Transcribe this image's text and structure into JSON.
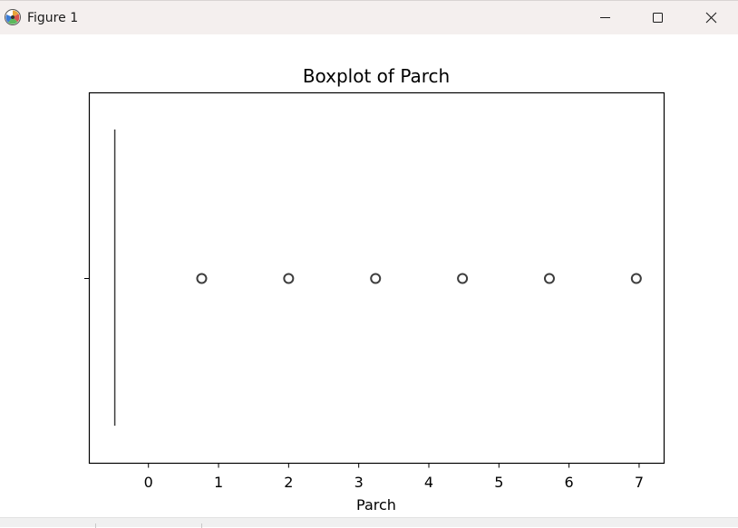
{
  "window": {
    "title": "Figure 1",
    "icons": {
      "app": "matplotlib-figure-icon",
      "minimize": "minimize-icon",
      "maximize": "maximize-icon",
      "close": "close-icon"
    }
  },
  "chart_data": {
    "type": "box",
    "title": "Boxplot of Parch",
    "xlabel": "Parch",
    "ylabel": "",
    "orientation": "horizontal",
    "xlim": [
      -0.85,
      7.35
    ],
    "xticks": [
      0,
      1,
      2,
      3,
      4,
      5,
      6,
      7
    ],
    "xtick_labels": [
      "0",
      "1",
      "2",
      "3",
      "4",
      "5",
      "6",
      "7"
    ],
    "box": {
      "min": -0.48,
      "q1": -0.48,
      "median": -0.48,
      "q3": -0.48,
      "max": -0.48
    },
    "outliers": [
      0.76,
      2.0,
      3.24,
      4.48,
      5.72,
      6.96
    ],
    "grid": false,
    "legend": "none",
    "colors": {
      "box_line": "#3d3d3d",
      "outlier_edge": "#3d3d3d",
      "axes": "#000000"
    }
  }
}
